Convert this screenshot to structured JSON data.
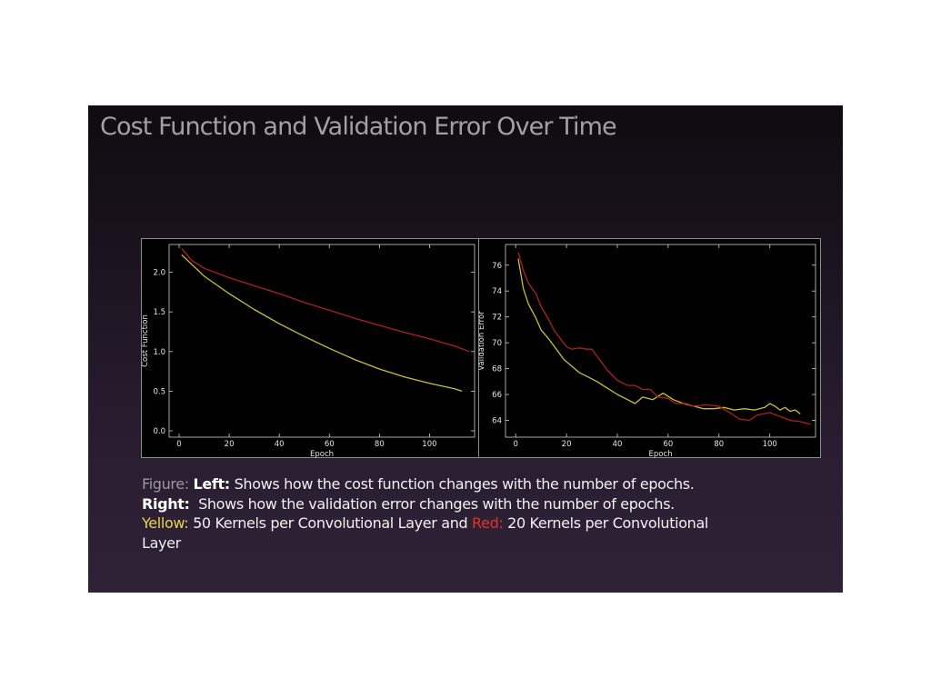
{
  "slide": {
    "title": "Cost Function and Validation Error Over Time"
  },
  "caption": {
    "figure_label": "Figure:",
    "left_label": "Left:",
    "left_text": " Shows how the cost function changes with the number of epochs.",
    "right_label": "Right:",
    "right_text": "  Shows how the validation error changes with the number of epochs.",
    "yellow_label": "Yellow:",
    "yellow_text": " 50 Kernels per Convolutional Layer and ",
    "red_label": "Red:",
    "red_text": " 20 Kernels per Convolutional",
    "last_line": "Layer"
  },
  "colors": {
    "yellow_series": "#c8c22e",
    "red_series": "#b0201c",
    "background": "#000000",
    "axis": "#cfcfcf"
  },
  "chart_data": [
    {
      "type": "line",
      "title": "",
      "xlabel": "Epoch",
      "ylabel": "Cost Function",
      "xlim": [
        -4,
        118
      ],
      "ylim": [
        -0.08,
        2.35
      ],
      "xticks": [
        0,
        20,
        40,
        60,
        80,
        100
      ],
      "yticks": [
        0.0,
        0.5,
        1.0,
        1.5,
        2.0
      ],
      "ytick_labels": [
        "0.0",
        "0.5",
        "1.0",
        "1.5",
        "2.0"
      ],
      "grid": false,
      "series": [
        {
          "color": "yellow",
          "x": [
            1,
            5,
            10,
            15,
            20,
            30,
            40,
            50,
            60,
            70,
            80,
            90,
            100,
            110,
            113
          ],
          "values": [
            2.22,
            2.1,
            1.95,
            1.84,
            1.73,
            1.53,
            1.35,
            1.19,
            1.04,
            0.9,
            0.78,
            0.68,
            0.6,
            0.53,
            0.5
          ]
        },
        {
          "color": "red",
          "x": [
            1,
            5,
            10,
            20,
            30,
            40,
            50,
            60,
            70,
            80,
            90,
            100,
            110,
            116
          ],
          "values": [
            2.3,
            2.15,
            2.05,
            1.93,
            1.83,
            1.73,
            1.62,
            1.52,
            1.42,
            1.33,
            1.24,
            1.16,
            1.07,
            1.0
          ]
        }
      ]
    },
    {
      "type": "line",
      "title": "",
      "xlabel": "Epoch",
      "ylabel": "Validation Error",
      "xlim": [
        -4,
        118
      ],
      "ylim": [
        62.7,
        77.6
      ],
      "xticks": [
        0,
        20,
        40,
        60,
        80,
        100
      ],
      "yticks": [
        64,
        66,
        68,
        70,
        72,
        74,
        76
      ],
      "ytick_labels": [
        "64",
        "66",
        "68",
        "70",
        "72",
        "74",
        "76"
      ],
      "grid": false,
      "series": [
        {
          "color": "yellow",
          "x": [
            1,
            3,
            5,
            8,
            10,
            13,
            16,
            19,
            22,
            25,
            28,
            32,
            36,
            40,
            44,
            47,
            50,
            54,
            58,
            62,
            66,
            70,
            74,
            78,
            82,
            86,
            90,
            94,
            98,
            100,
            102,
            104,
            106,
            108,
            110,
            112
          ],
          "values": [
            76.5,
            74.2,
            73.0,
            71.9,
            71.0,
            70.3,
            69.5,
            68.7,
            68.2,
            67.7,
            67.4,
            67.0,
            66.5,
            66.0,
            65.6,
            65.3,
            65.8,
            65.6,
            66.1,
            65.6,
            65.3,
            65.1,
            64.9,
            64.9,
            65.0,
            64.8,
            64.9,
            64.8,
            65.0,
            65.3,
            65.1,
            64.8,
            65.0,
            64.7,
            64.8,
            64.5
          ]
        },
        {
          "color": "red",
          "x": [
            1,
            3,
            5,
            8,
            10,
            13,
            15,
            18,
            20,
            22,
            25,
            28,
            30,
            33,
            36,
            40,
            44,
            47,
            50,
            53,
            56,
            60,
            63,
            67,
            70,
            75,
            80,
            85,
            88,
            92,
            95,
            100,
            104,
            108,
            112,
            116
          ],
          "values": [
            77.0,
            75.6,
            74.6,
            73.8,
            72.8,
            71.8,
            71.0,
            70.2,
            69.7,
            69.5,
            69.6,
            69.5,
            69.5,
            68.7,
            67.9,
            67.1,
            66.7,
            66.7,
            66.4,
            66.4,
            65.8,
            65.7,
            65.3,
            65.3,
            65.1,
            65.2,
            65.1,
            64.5,
            64.1,
            64.0,
            64.4,
            64.6,
            64.3,
            64.0,
            63.9,
            63.7
          ]
        }
      ]
    }
  ]
}
